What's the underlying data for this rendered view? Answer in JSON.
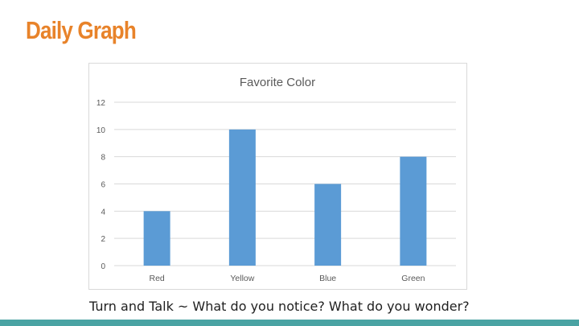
{
  "slide": {
    "title": "Daily Graph",
    "caption": "Turn and Talk ~ What do you notice?  What do you wonder?",
    "accent_color": "#e8832a",
    "bottom_bar_color": "#4aa3a3"
  },
  "chart_data": {
    "type": "bar",
    "title": "Favorite Color",
    "xlabel": "",
    "ylabel": "",
    "categories": [
      "Red",
      "Yellow",
      "Blue",
      "Green"
    ],
    "values": [
      4,
      10,
      6,
      8
    ],
    "ylim": [
      0,
      12
    ],
    "yticks": [
      0,
      2,
      4,
      6,
      8,
      10,
      12
    ],
    "grid": true,
    "legend": "none",
    "bar_color": "#5b9bd5"
  }
}
